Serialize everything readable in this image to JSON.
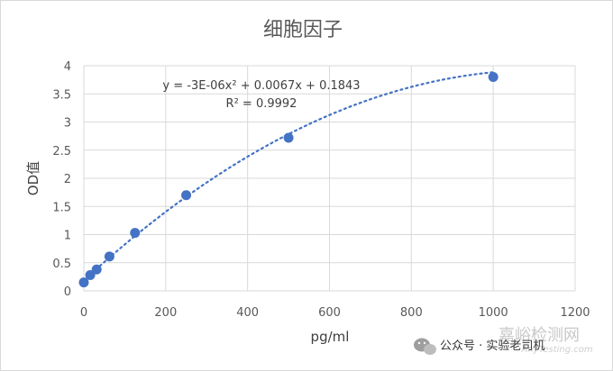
{
  "chart_data": {
    "type": "scatter",
    "title": "细胞因子",
    "xlabel": "pg/ml",
    "ylabel": "OD值",
    "xlim": [
      0,
      1200
    ],
    "ylim": [
      0,
      4
    ],
    "x_ticks": [
      "0",
      "200",
      "400",
      "600",
      "800",
      "1000",
      "1200"
    ],
    "y_ticks": [
      "0",
      "0.5",
      "1",
      "1.5",
      "2",
      "2.5",
      "3",
      "3.5",
      "4"
    ],
    "grid": true,
    "points": [
      {
        "x": 0,
        "y": 0.15
      },
      {
        "x": 15.6,
        "y": 0.28
      },
      {
        "x": 31.25,
        "y": 0.38
      },
      {
        "x": 62.5,
        "y": 0.61
      },
      {
        "x": 125,
        "y": 1.03
      },
      {
        "x": 250,
        "y": 1.7
      },
      {
        "x": 500,
        "y": 2.72
      },
      {
        "x": 1000,
        "y": 3.8
      }
    ],
    "trendline": {
      "type": "polynomial",
      "coefficients": {
        "a": -3e-06,
        "b": 0.0067,
        "c": 0.1843
      },
      "equation": "y = -3E-06x² + 0.0067x + 0.1843",
      "r_squared": "R² = 0.9992"
    },
    "series_color": "#4472c4"
  },
  "watermark": {
    "site": "嘉峪检测网",
    "site_sub": "AnyTesting.com",
    "account": "公众号 · 实验老司机"
  }
}
